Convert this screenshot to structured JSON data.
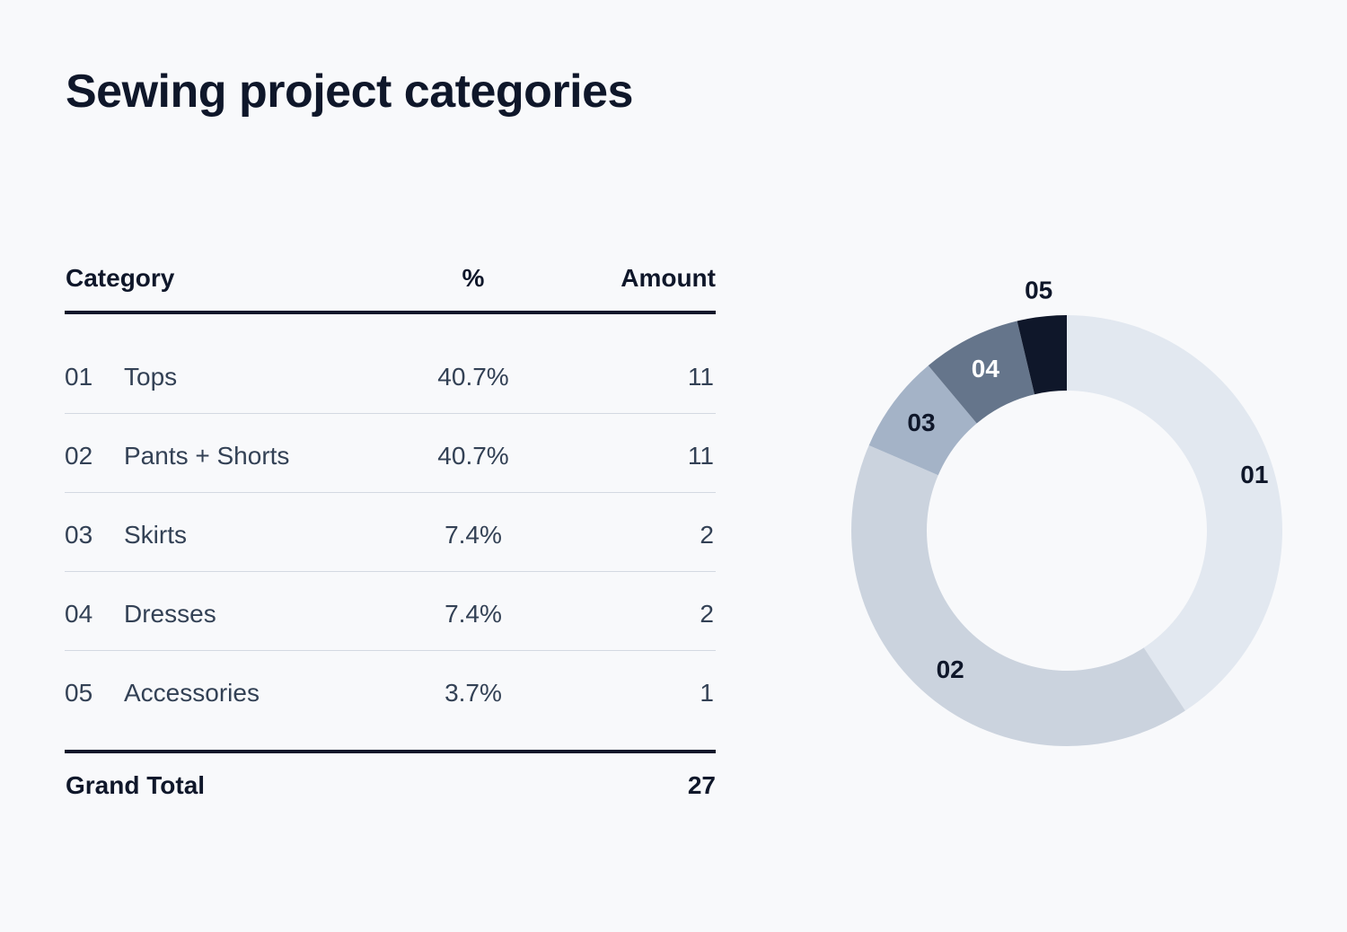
{
  "title": "Sewing project categories",
  "table": {
    "headers": {
      "category": "Category",
      "percent": "%",
      "amount": "Amount"
    },
    "rows": [
      {
        "num": "01",
        "name": "Tops",
        "percent": "40.7%",
        "amount": "11"
      },
      {
        "num": "02",
        "name": "Pants + Shorts",
        "percent": "40.7%",
        "amount": "11"
      },
      {
        "num": "03",
        "name": "Skirts",
        "percent": "7.4%",
        "amount": "2"
      },
      {
        "num": "04",
        "name": "Dresses",
        "percent": "7.4%",
        "amount": "2"
      },
      {
        "num": "05",
        "name": "Accessories",
        "percent": "3.7%",
        "amount": "1"
      }
    ],
    "total": {
      "label": "Grand Total",
      "value": "27"
    }
  },
  "chart_data": {
    "type": "pie",
    "variant": "donut",
    "categories": [
      "01",
      "02",
      "03",
      "04",
      "05"
    ],
    "values": [
      11,
      11,
      2,
      2,
      1
    ],
    "colors": [
      "#e2e8f0",
      "#cbd3de",
      "#a4b3c7",
      "#65758b",
      "#0f172a"
    ],
    "label_colors": [
      "#0f172a",
      "#0f172a",
      "#0f172a",
      "#ffffff",
      "#0f172a"
    ],
    "start": "top, clockwise"
  }
}
